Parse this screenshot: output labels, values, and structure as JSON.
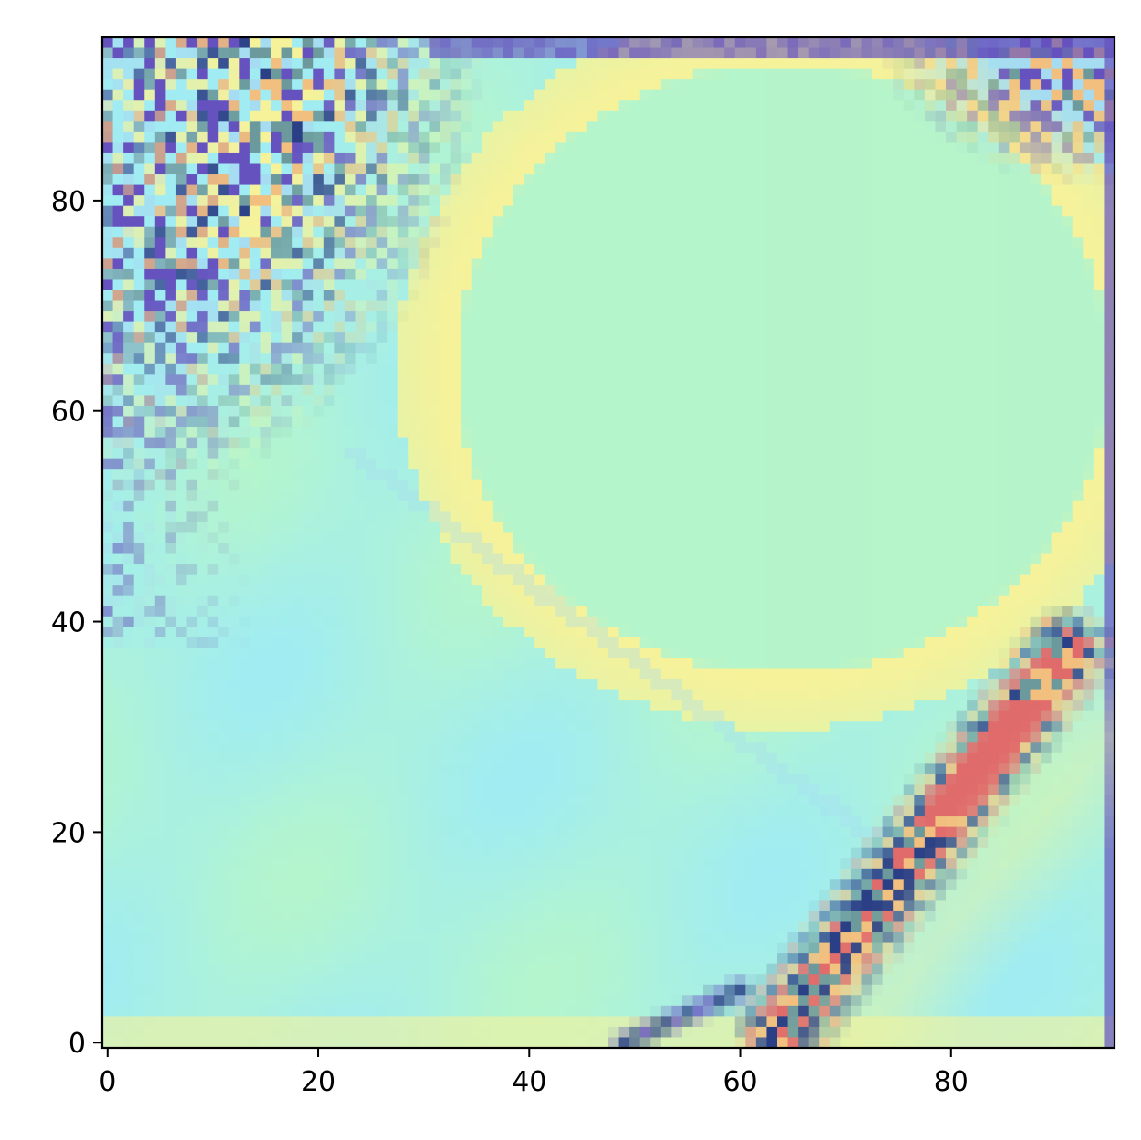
{
  "chart_data": {
    "type": "heatmap",
    "title": "",
    "xlabel": "",
    "ylabel": "",
    "grid": false,
    "image_shape": [
      96,
      96
    ],
    "xlim": [
      -0.5,
      95.5
    ],
    "ylim": [
      95.5,
      -0.5
    ],
    "x_ticks": [
      0,
      20,
      40,
      60,
      80
    ],
    "y_ticks": [
      0,
      20,
      40,
      60,
      80
    ],
    "x_tick_labels": [
      "0",
      "20",
      "40",
      "60",
      "80"
    ],
    "y_tick_labels": [
      "0",
      "20",
      "40",
      "60",
      "80"
    ],
    "colors": {
      "base": "#b4f5cd",
      "cyan": "#a0ecf2",
      "light_blue": "#a6dcf2",
      "yellow": "#f6f29a",
      "orange": "#f2bf7e",
      "red": "#e06b6b",
      "purple": "#6552bf",
      "navy": "#2a3f86",
      "teal": "#6c9a9c"
    }
  }
}
